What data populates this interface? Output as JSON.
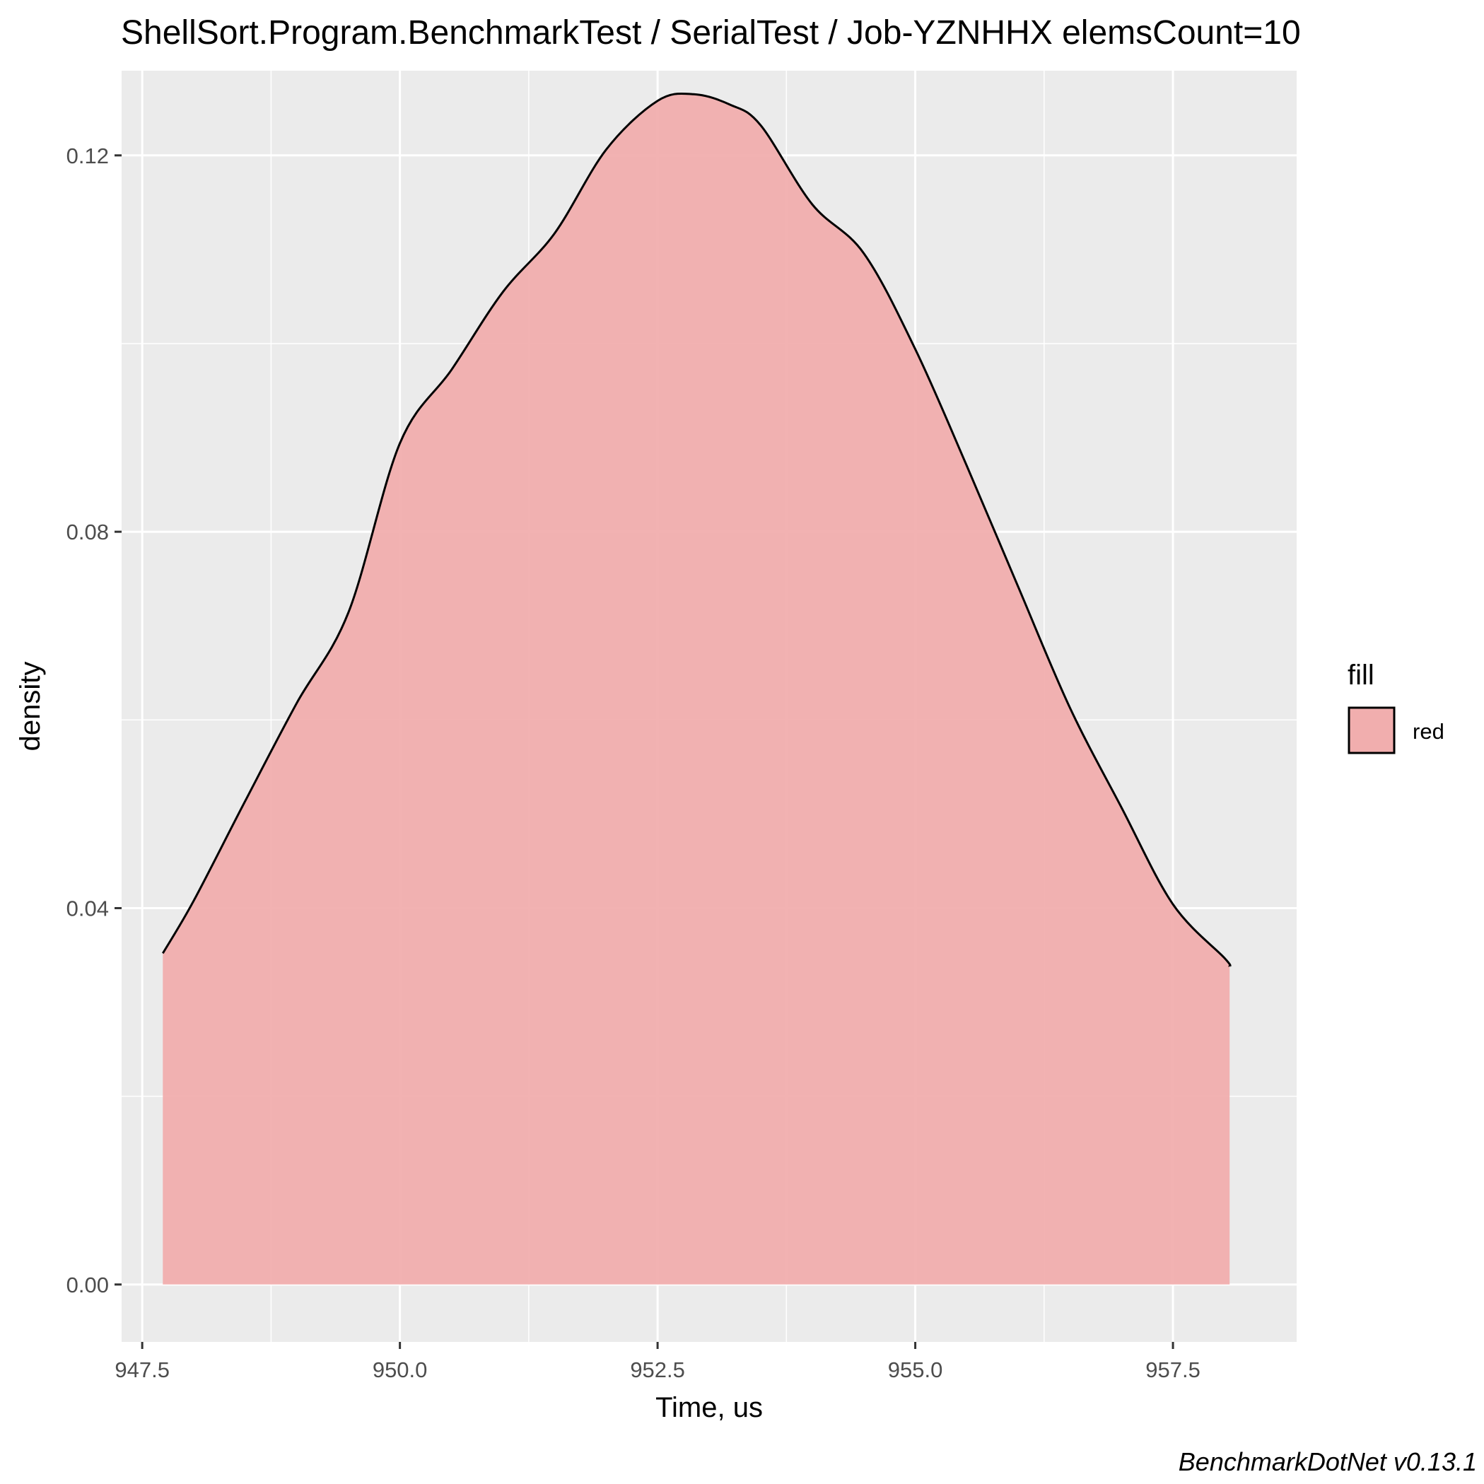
{
  "chart_data": {
    "type": "area",
    "title": "ShellSort.Program.BenchmarkTest / SerialTest / Job-YZNHHX elemsCount=10",
    "xlabel": "Time, us",
    "ylabel": "density",
    "caption": "BenchmarkDotNet v0.13.1",
    "xlim": [
      947.3,
      958.7
    ],
    "ylim": [
      -0.0061,
      0.129
    ],
    "x_ticks": [
      947.5,
      950.0,
      952.5,
      955.0,
      957.5
    ],
    "x_tick_labels": [
      "947.5",
      "950.0",
      "952.5",
      "955.0",
      "957.5"
    ],
    "y_ticks": [
      0.0,
      0.04,
      0.08,
      0.12
    ],
    "y_tick_labels": [
      "0.00",
      "0.04",
      "0.08",
      "0.12"
    ],
    "grid": true,
    "legend": {
      "title": "fill",
      "position": "right",
      "entries": [
        "red"
      ]
    },
    "fill_color": "#f1aeae",
    "line_color": "#000000",
    "panel_color": "#ebebeb",
    "series": [
      {
        "x": [
          947.7,
          948.0,
          948.5,
          949.0,
          949.5,
          950.0,
          950.5,
          951.0,
          951.5,
          952.0,
          952.5,
          952.85,
          953.2,
          953.5,
          954.0,
          954.5,
          955.0,
          955.5,
          956.0,
          956.5,
          957.0,
          957.5,
          958.0,
          958.05
        ],
        "y": [
          0.0352,
          0.0408,
          0.0514,
          0.0618,
          0.0714,
          0.0894,
          0.0972,
          0.1055,
          0.1117,
          0.1206,
          0.1258,
          0.1265,
          0.1254,
          0.1232,
          0.1148,
          0.1096,
          0.0994,
          0.087,
          0.0741,
          0.0613,
          0.0507,
          0.0404,
          0.0347,
          0.0338
        ]
      }
    ]
  }
}
